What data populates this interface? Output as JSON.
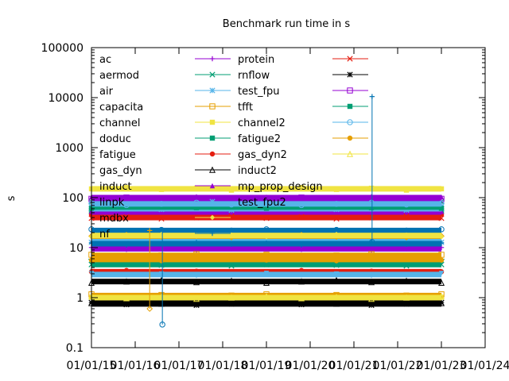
{
  "chart_data": {
    "type": "line",
    "title": "Benchmark run time in s",
    "ylabel": "s",
    "xlabel": "",
    "yscale": "log",
    "ylim": [
      0.1,
      100000
    ],
    "xlim": [
      "2015-01-01",
      "2024-01-01"
    ],
    "yticks": [
      "0.1",
      "1",
      "10",
      "100",
      "1000",
      "10000",
      "100000"
    ],
    "xticks": [
      "01/01/15",
      "01/01/16",
      "01/01/17",
      "01/01/18",
      "01/01/19",
      "01/01/20",
      "01/01/21",
      "01/01/22",
      "01/01/23",
      "01/01/24"
    ],
    "grid": false,
    "legend_position": "top-left",
    "x_start": "2015-01-01",
    "x_end": "2023-01-01",
    "series": [
      {
        "name": "ac",
        "color": "#9400d3",
        "marker": "plus",
        "value": 9.5
      },
      {
        "name": "aermod",
        "color": "#009e73",
        "marker": "cross",
        "value": 4.6
      },
      {
        "name": "air",
        "color": "#56b4e9",
        "marker": "star",
        "value": 13.5
      },
      {
        "name": "capacita",
        "color": "#e69f00",
        "marker": "square",
        "value": 7.0
      },
      {
        "name": "channel",
        "color": "#f0e442",
        "marker": "square-filled",
        "value": 1.05
      },
      {
        "name": "doduc",
        "color": "#0072b2",
        "marker": "circle",
        "value": 22.0
      },
      {
        "name": "fatigue",
        "color": "#e51e10",
        "marker": "circle-filled",
        "value": 3.3
      },
      {
        "name": "gas_dyn",
        "color": "#000000",
        "marker": "triangle",
        "value": 2.1
      },
      {
        "name": "induct",
        "color": "#9400d3",
        "marker": "triangle-filled",
        "value": 100.0
      },
      {
        "name": "linpk",
        "color": "#009e73",
        "marker": "inv-triangle",
        "value": 5.4
      },
      {
        "name": "mdbx",
        "color": "#56b4e9",
        "marker": "inv-triangle-filled",
        "value": 2.9
      },
      {
        "name": "nf",
        "color": "#e69f00",
        "marker": "diamond",
        "value": 17.0
      },
      {
        "name": "protein",
        "color": "#9400d3",
        "marker": "plus",
        "value": 85.0
      },
      {
        "name": "rnflow",
        "color": "#009e73",
        "marker": "cross",
        "value": 80.0
      },
      {
        "name": "test_fpu",
        "color": "#56b4e9",
        "marker": "star",
        "value": 70.0
      },
      {
        "name": "tfft",
        "color": "#e69f00",
        "marker": "square",
        "value": 1.1
      },
      {
        "name": "channel2",
        "color": "#f0e442",
        "marker": "square-filled",
        "value": 150.0
      },
      {
        "name": "fatigue2",
        "color": "#009e73",
        "marker": "square-filled",
        "value": 55.0
      },
      {
        "name": "gas_dyn2",
        "color": "#e51e10",
        "marker": "circle-filled",
        "value": 45.0
      },
      {
        "name": "induct2",
        "color": "#000000",
        "marker": "triangle",
        "value": 0.8
      },
      {
        "name": "mp_prop_design",
        "color": "#9400d3",
        "marker": "triangle-filled",
        "value": 50.0
      },
      {
        "name": "test_fpu2",
        "color": "#56b4e9",
        "marker": "star",
        "value": 60.0
      },
      {
        "name": "",
        "color": "#f0e442",
        "marker": "diamond-filled",
        "value": 17.5
      },
      {
        "name": "",
        "color": "#0072b2",
        "marker": "plus",
        "value": 12.0
      },
      {
        "name": "",
        "color": "#e51e10",
        "marker": "cross",
        "value": 40.0
      },
      {
        "name": "",
        "color": "#000000",
        "marker": "star",
        "value": 0.75
      },
      {
        "name": "",
        "color": "#9400d3",
        "marker": "square",
        "value": 95.0
      },
      {
        "name": "",
        "color": "#009e73",
        "marker": "square-filled",
        "value": 65.0
      },
      {
        "name": "",
        "color": "#56b4e9",
        "marker": "circle",
        "value": 75.0
      },
      {
        "name": "",
        "color": "#e69f00",
        "marker": "circle-filled",
        "value": 5.8
      },
      {
        "name": "",
        "color": "#f0e442",
        "marker": "triangle",
        "value": 1.0
      }
    ],
    "annotations": [
      {
        "x": "2016-05-01",
        "value_low": 0.6,
        "value_high": 22.0,
        "color": "#e69f00"
      },
      {
        "x": "2016-08-15",
        "value_low": 0.29,
        "value_high": 22.0,
        "color": "#0072b2"
      },
      {
        "x": "2021-06-01",
        "value_low": 13.0,
        "value_high": 10500.0,
        "color": "#0072b2"
      }
    ]
  }
}
